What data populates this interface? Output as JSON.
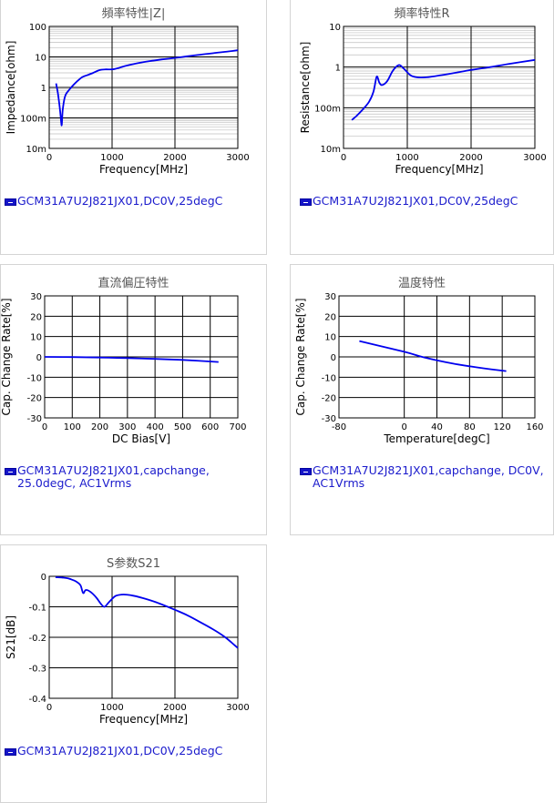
{
  "colors": {
    "line": "#0000ee",
    "grid_major": "#000000",
    "grid_minor": "#bfbfbf",
    "legend": "#1a1acc",
    "title": "#555555"
  },
  "charts": [
    {
      "panel_title": "頻率特性|Z|",
      "legend": "GCM31A7U2J821JX01,DC0V,25degC",
      "chart_data": {
        "type": "line",
        "yscale": "log",
        "xlabel": "Frequency[MHz]",
        "ylabel": "Impedance[ohm]",
        "xlim": [
          0,
          3000
        ],
        "ylim": [
          0.01,
          100
        ],
        "xticks": [
          "0",
          "1000",
          "2000",
          "3000"
        ],
        "yticks": [
          "10m",
          "100m",
          "1",
          "10",
          "100"
        ],
        "grid": true,
        "series": [
          {
            "x": [
              110,
              140,
              170,
              190,
              200,
              215,
              250,
              300,
              400,
              500,
              550,
              600,
              700,
              800,
              900,
              1000,
              1100,
              1200,
              1400,
              1600,
              1800,
              2000,
              2200,
              2400,
              2600,
              2800,
              3000
            ],
            "y": [
              1.35,
              0.6,
              0.2,
              0.075,
              0.06,
              0.18,
              0.5,
              0.75,
              1.3,
              2.0,
              2.3,
              2.5,
              3.0,
              3.7,
              3.9,
              3.9,
              4.3,
              5.0,
              6.2,
              7.3,
              8.3,
              9.3,
              10.5,
              11.8,
              13.2,
              14.7,
              16.5
            ]
          }
        ]
      }
    },
    {
      "panel_title": "頻率特性R",
      "legend": "GCM31A7U2J821JX01,DC0V,25degC",
      "chart_data": {
        "type": "line",
        "yscale": "log",
        "xlabel": "Frequency[MHz]",
        "ylabel": "Resistance[ohm]",
        "xlim": [
          0,
          3000
        ],
        "ylim": [
          0.01,
          10
        ],
        "xticks": [
          "0",
          "1000",
          "2000",
          "3000"
        ],
        "yticks": [
          "10m",
          "100m",
          "1",
          "10"
        ],
        "grid": true,
        "series": [
          {
            "x": [
              130,
              200,
              300,
              400,
              470,
              520,
              560,
              600,
              680,
              760,
              820,
              880,
              950,
              1050,
              1150,
              1300,
              1500,
              1700,
              2000,
              2300,
              2600,
              3000
            ],
            "y": [
              0.05,
              0.062,
              0.09,
              0.14,
              0.25,
              0.58,
              0.42,
              0.36,
              0.44,
              0.75,
              1.0,
              1.12,
              0.9,
              0.63,
              0.56,
              0.56,
              0.62,
              0.7,
              0.85,
              1.0,
              1.2,
              1.5
            ]
          }
        ]
      }
    },
    {
      "panel_title": "直流偏圧特性",
      "legend": "GCM31A7U2J821JX01,capchange, 25.0degC, AC1Vrms",
      "chart_data": {
        "type": "line",
        "yscale": "linear",
        "xlabel": "DC Bias[V]",
        "ylabel": "Cap. Change Rate[%]",
        "xlim": [
          0,
          700
        ],
        "ylim": [
          -30,
          30
        ],
        "xticks": [
          "0",
          "100",
          "200",
          "300",
          "400",
          "500",
          "600",
          "700"
        ],
        "yticks": [
          "-30",
          "-20",
          "-10",
          "0",
          "10",
          "20",
          "30"
        ],
        "grid": true,
        "series": [
          {
            "x": [
              0,
              100,
              200,
              300,
              400,
              500,
              630
            ],
            "y": [
              0,
              -0.1,
              -0.3,
              -0.6,
              -1.0,
              -1.5,
              -2.5
            ]
          }
        ]
      }
    },
    {
      "panel_title": "温度特性",
      "legend": "GCM31A7U2J821JX01,capchange, DC0V, AC1Vrms",
      "chart_data": {
        "type": "line",
        "yscale": "linear",
        "xlabel": "Temperature[degC]",
        "ylabel": "Cap. Change Rate[%]",
        "xlim": [
          -80,
          160
        ],
        "ylim": [
          -30,
          30
        ],
        "xticks": [
          "-80",
          "0",
          "40",
          "80",
          "120",
          "160"
        ],
        "yticks": [
          "-30",
          "-20",
          "-10",
          "0",
          "10",
          "20",
          "30"
        ],
        "grid": true,
        "series": [
          {
            "x": [
              -55,
              0,
              25,
              60,
              90,
              125
            ],
            "y": [
              7.8,
              2.5,
              -0.3,
              -3.3,
              -5.2,
              -7.0
            ]
          }
        ]
      }
    },
    {
      "panel_title": "S参数S21",
      "legend": "GCM31A7U2J821JX01,DC0V,25degC",
      "chart_data": {
        "type": "line",
        "yscale": "linear",
        "xlabel": "Frequency[MHz]",
        "ylabel": "S21[dB]",
        "xlim": [
          0,
          3000
        ],
        "ylim": [
          -0.4,
          0
        ],
        "xticks": [
          "0",
          "1000",
          "2000",
          "3000"
        ],
        "yticks": [
          "-0.4",
          "-0.3",
          "-0.2",
          "-0.1",
          "0"
        ],
        "grid": true,
        "series": [
          {
            "x": [
              100,
              200,
              300,
              400,
              450,
              500,
              540,
              580,
              650,
              750,
              820,
              880,
              950,
              1050,
              1150,
              1300,
              1500,
              1700,
              2000,
              2200,
              2400,
              2600,
              2800,
              3000
            ],
            "y": [
              -0.003,
              -0.004,
              -0.007,
              -0.014,
              -0.02,
              -0.03,
              -0.055,
              -0.045,
              -0.05,
              -0.07,
              -0.09,
              -0.1,
              -0.085,
              -0.065,
              -0.06,
              -0.062,
              -0.072,
              -0.085,
              -0.11,
              -0.128,
              -0.15,
              -0.173,
              -0.2,
              -0.235
            ]
          }
        ]
      }
    }
  ]
}
